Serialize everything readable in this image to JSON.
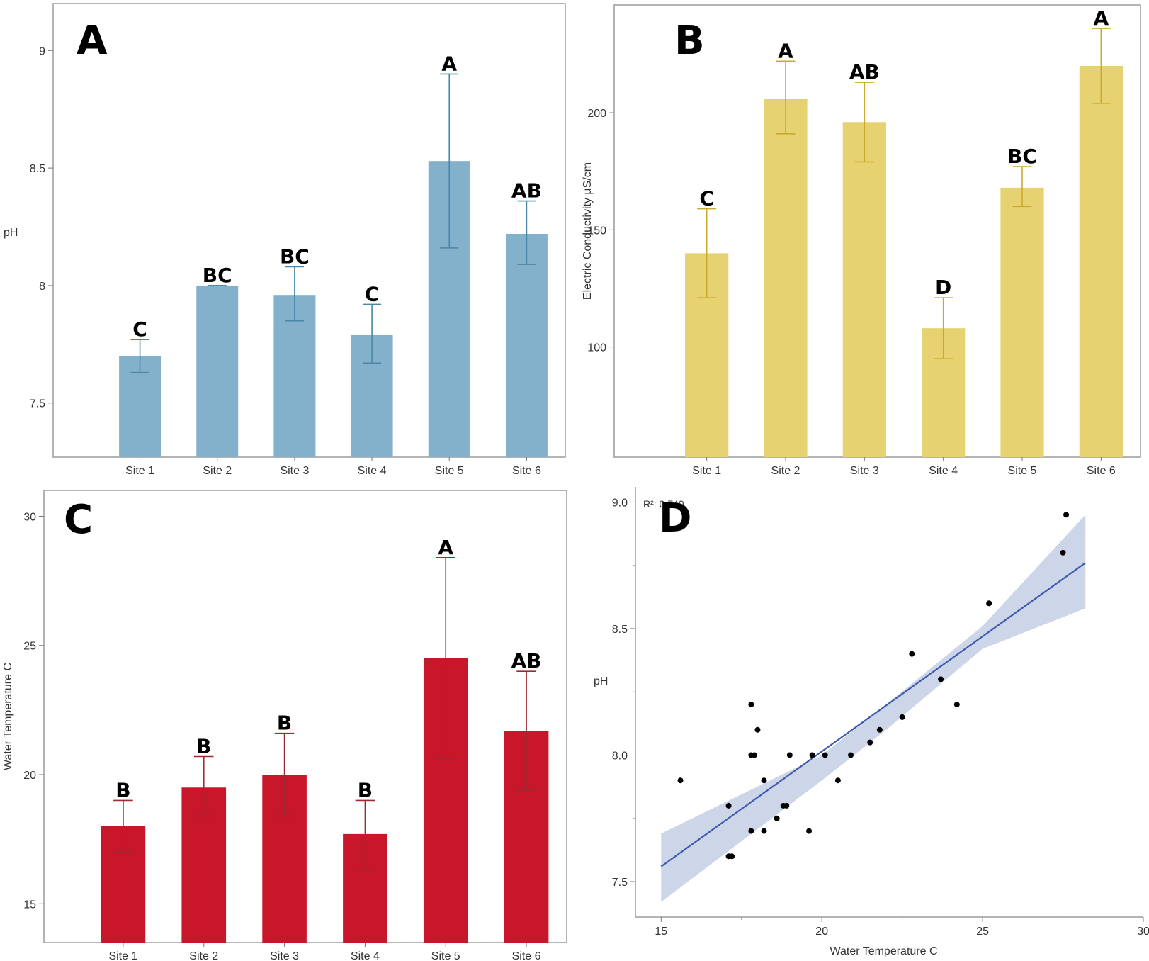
{
  "chart_data": [
    {
      "type": "bar",
      "panel_label": "A",
      "categories": [
        "Site 1",
        "Site 2",
        "Site 3",
        "Site 4",
        "Site 5",
        "Site 6"
      ],
      "values": [
        7.7,
        8.0,
        7.96,
        7.79,
        8.53,
        8.22
      ],
      "error_low": [
        7.63,
        8.0,
        7.85,
        7.67,
        8.16,
        8.09
      ],
      "error_high": [
        7.77,
        8.0,
        8.08,
        7.92,
        8.9,
        8.36
      ],
      "group_labels": [
        "C",
        "BC",
        "BC",
        "C",
        "A",
        "AB"
      ],
      "ylabel": "pH",
      "xlabel": "",
      "ylim": [
        7.27,
        9.2
      ],
      "yticks": [
        7.5,
        8,
        8.5,
        9
      ],
      "ytick_labels": [
        "7.5",
        "8",
        "8.5",
        "9"
      ],
      "bar_color": "#83B0CB",
      "error_color": "#4A86A8",
      "grid": false
    },
    {
      "type": "bar",
      "panel_label": "B",
      "categories": [
        "Site 1",
        "Site 2",
        "Site 3",
        "Site 4",
        "Site 5",
        "Site 6"
      ],
      "values": [
        140,
        206,
        196,
        108,
        168,
        220
      ],
      "error_low": [
        121,
        191,
        179,
        95,
        160,
        204
      ],
      "error_high": [
        159,
        222,
        213,
        121,
        177,
        236
      ],
      "group_labels": [
        "C",
        "A",
        "AB",
        "D",
        "BC",
        "A"
      ],
      "ylabel": "Electric Conductivity µS/cm",
      "xlabel": "",
      "ylim": [
        53,
        246
      ],
      "yticks": [
        100,
        150,
        200
      ],
      "ytick_labels": [
        "100",
        "150",
        "200"
      ],
      "bar_color": "#E7D272",
      "error_color": "#C9AA2E",
      "grid": false
    },
    {
      "type": "bar",
      "panel_label": "C",
      "categories": [
        "Site 1",
        "Site 2",
        "Site 3",
        "Site 4",
        "Site 5",
        "Site 6"
      ],
      "values": [
        18.0,
        19.5,
        20.0,
        17.7,
        24.5,
        21.7
      ],
      "error_low": [
        17.0,
        18.4,
        18.4,
        16.3,
        20.6,
        19.4
      ],
      "error_high": [
        19.0,
        20.7,
        21.6,
        19.0,
        28.4,
        24.0
      ],
      "group_labels": [
        "B",
        "B",
        "B",
        "B",
        "A",
        "AB"
      ],
      "ylabel": "Water Temperature C",
      "xlabel": "",
      "ylim": [
        13.5,
        31.0
      ],
      "yticks": [
        15,
        20,
        25,
        30
      ],
      "ytick_labels": [
        "15",
        "20",
        "25",
        "30"
      ],
      "bar_color": "#C8172A",
      "error_color": "#9A2A33",
      "grid": false
    },
    {
      "type": "scatter",
      "panel_label": "D",
      "annotation": "R²: 0.740",
      "xlabel": "Water Temperature C",
      "ylabel": "pH",
      "xlim": [
        14.2,
        30.0
      ],
      "ylim": [
        7.36,
        9.06
      ],
      "xticks": [
        15,
        20,
        25,
        30
      ],
      "xtick_labels": [
        "15",
        "20",
        "25",
        "30"
      ],
      "yticks": [
        7.5,
        8.0,
        8.5,
        9.0
      ],
      "ytick_labels": [
        "7.5",
        "8.0",
        "8.5",
        "9.0"
      ],
      "points": {
        "x": [
          15.6,
          17.1,
          17.2,
          17.1,
          17.8,
          17.8,
          17.9,
          17.8,
          18.0,
          18.2,
          18.2,
          18.6,
          18.8,
          18.9,
          19.0,
          19.6,
          19.7,
          20.1,
          20.5,
          20.9,
          21.5,
          21.8,
          22.5,
          22.8,
          23.7,
          24.2,
          25.2,
          27.5,
          27.6
        ],
        "y": [
          7.9,
          7.8,
          7.6,
          7.6,
          8.2,
          8.0,
          8.0,
          7.7,
          8.1,
          7.9,
          7.7,
          7.75,
          7.8,
          7.8,
          8.0,
          7.7,
          8.0,
          8.0,
          7.9,
          8.0,
          8.05,
          8.1,
          8.15,
          8.4,
          8.3,
          8.2,
          8.6,
          8.8,
          8.95
        ]
      },
      "fit": {
        "x": [
          15.0,
          28.2
        ],
        "y": [
          7.56,
          8.76
        ]
      },
      "confidence_band": {
        "x": [
          15.0,
          20.0,
          22.0,
          25.0,
          28.2
        ],
        "upper": [
          7.69,
          8.0,
          8.2,
          8.51,
          8.95
        ],
        "lower": [
          7.42,
          7.9,
          8.1,
          8.42,
          8.58
        ]
      },
      "point_color": "#000000",
      "fit_color": "#3F5BAF",
      "band_color": "#C8D0E6",
      "grid": false
    }
  ]
}
